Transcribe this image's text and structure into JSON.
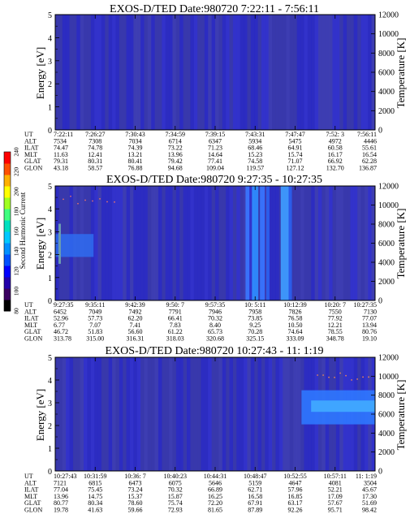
{
  "chart_data": [
    {
      "type": "heatmap",
      "title": "EXOS-D/TED   Date:980720  7:22:11 - 7:56:11",
      "ylabel": "Energy [eV]",
      "y2label": "Temperature [K]",
      "ylim": [
        0,
        5
      ],
      "y2lim": [
        0,
        12000
      ],
      "yticks": [
        "0",
        "1",
        "2",
        "3",
        "4",
        "5"
      ],
      "y2ticks": [
        "0",
        "2000",
        "4000",
        "6000",
        "8000",
        "10000",
        "12000"
      ],
      "table_labels": [
        "UT",
        "ALT",
        "ILAT",
        "MLT",
        "GLAT",
        "GLON"
      ],
      "table_columns": [
        [
          "7:22:11",
          "7534",
          "74.47",
          "11.63",
          "79.31",
          "43.18"
        ],
        [
          "7:26:27",
          "7308",
          "74.78",
          "12.41",
          "80.31",
          "58.57"
        ],
        [
          "7:30:43",
          "7034",
          "74.39",
          "13.21",
          "80.41",
          "76.88"
        ],
        [
          "7:34:59",
          "6714",
          "73.22",
          "13.96",
          "79.42",
          "94.68"
        ],
        [
          "7:39:15",
          "6347",
          "71.23",
          "14.64",
          "77.41",
          "109.04"
        ],
        [
          "7:43:31",
          "5934",
          "68.46",
          "15.23",
          "74.58",
          "119.57"
        ],
        [
          "7:47:47",
          "5475",
          "64.91",
          "15.74",
          "71.07",
          "127.12"
        ],
        [
          "7:52: 3",
          "4972",
          "60.58",
          "16.17",
          "66.92",
          "132.70"
        ],
        [
          "7:56:11",
          "4446",
          "55.61",
          "16.54",
          "62.28",
          "136.87"
        ]
      ]
    },
    {
      "type": "heatmap",
      "title": "EXOS-D/TED   Date:980720  9:27:35 - 10:27:35",
      "ylabel": "Energy [eV]",
      "y2label": "Temperature [K]",
      "ylim": [
        0,
        5
      ],
      "y2lim": [
        0,
        12000
      ],
      "yticks": [
        "0",
        "1",
        "2",
        "3",
        "4",
        "5"
      ],
      "y2ticks": [
        "0",
        "2000",
        "4000",
        "6000",
        "8000",
        "10000",
        "12000"
      ],
      "table_labels": [
        "UT",
        "ALT",
        "ILAT",
        "MLT",
        "GLAT",
        "GLON"
      ],
      "table_columns": [
        [
          "9:27:35",
          "6452",
          "52.96",
          "6.77",
          "46.72",
          "313.78"
        ],
        [
          "9:35:11",
          "7049",
          "57.73",
          "7.07",
          "51.83",
          "315.00"
        ],
        [
          "9:42:39",
          "7492",
          "62.20",
          "7.41",
          "56.60",
          "316.31"
        ],
        [
          "9:50: 7",
          "7791",
          "66.41",
          "7.83",
          "61.22",
          "318.03"
        ],
        [
          "9:57:35",
          "7946",
          "70.32",
          "8.40",
          "65.73",
          "320.68"
        ],
        [
          "10: 5:11",
          "7958",
          "73.85",
          "9.25",
          "70.28",
          "325.15"
        ],
        [
          "10:12:39",
          "7826",
          "76.58",
          "10.50",
          "74.64",
          "333.09"
        ],
        [
          "10:20: 7",
          "7550",
          "77.92",
          "12.21",
          "78.55",
          "348.78"
        ],
        [
          "10:27:35",
          "7130",
          "77.07",
          "13.94",
          "80.76",
          "19.10"
        ]
      ],
      "annotation": "Second Harmonic Current"
    },
    {
      "type": "heatmap",
      "title": "EXOS-D/TED   Date:980720  10:27:43 - 11: 1:19",
      "ylabel": "Energy [eV]",
      "y2label": "Temperature [K]",
      "ylim": [
        0,
        5
      ],
      "y2lim": [
        0,
        12000
      ],
      "yticks": [
        "0",
        "1",
        "2",
        "3",
        "4",
        "5"
      ],
      "y2ticks": [
        "0",
        "2000",
        "4000",
        "6000",
        "8000",
        "10000",
        "12000"
      ],
      "table_labels": [
        "UT",
        "ALT",
        "ILAT",
        "MLT",
        "GLAT",
        "GLON"
      ],
      "table_columns": [
        [
          "10:27:43",
          "7121",
          "77.04",
          "13.96",
          "80.77",
          "19.78"
        ],
        [
          "10:31:59",
          "6815",
          "75.45",
          "14.75",
          "80.34",
          "41.63"
        ],
        [
          "10:36: 7",
          "6473",
          "73.24",
          "15.37",
          "78.60",
          "59.66"
        ],
        [
          "10:40:23",
          "6075",
          "70.32",
          "15.87",
          "75.74",
          "72.93"
        ],
        [
          "10:44:31",
          "5646",
          "66.89",
          "16.25",
          "72.20",
          "81.65"
        ],
        [
          "10:48:47",
          "5159",
          "62.71",
          "16.58",
          "67.91",
          "87.89"
        ],
        [
          "10:52:55",
          "4647",
          "57.96",
          "16.85",
          "63.17",
          "92.26"
        ],
        [
          "10:57:11",
          "4081",
          "52.21",
          "17.09",
          "57.67",
          "95.71"
        ],
        [
          "11: 1:19",
          "3504",
          "45.67",
          "17.30",
          "51.69",
          "98.42"
        ]
      ]
    }
  ],
  "colorbar": {
    "label": "Second Harmonic Current",
    "ticks": [
      "80",
      "100",
      "120",
      "140",
      "160",
      "180",
      "200",
      "220",
      "240"
    ],
    "colors": [
      "#000000",
      "#3a0060",
      "#2200aa",
      "#0000ff",
      "#0050ff",
      "#0090ff",
      "#00c8ff",
      "#00e0c0",
      "#40ff80",
      "#a0ff20",
      "#ffff00",
      "#ffb000",
      "#ff5000",
      "#ff0000"
    ]
  }
}
